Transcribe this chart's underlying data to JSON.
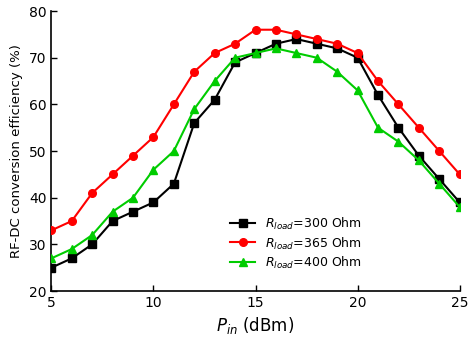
{
  "x": [
    5,
    6,
    7,
    8,
    9,
    10,
    11,
    12,
    13,
    14,
    15,
    16,
    17,
    18,
    19,
    20,
    21,
    22,
    23,
    24,
    25
  ],
  "y_300": [
    25,
    27,
    30,
    35,
    37,
    39,
    43,
    56,
    61,
    69,
    71,
    73,
    74,
    73,
    72,
    70,
    62,
    55,
    49,
    44,
    39
  ],
  "y_365": [
    33,
    35,
    41,
    45,
    49,
    53,
    60,
    67,
    71,
    73,
    76,
    76,
    75,
    74,
    73,
    71,
    65,
    60,
    55,
    50,
    45
  ],
  "y_400": [
    27,
    29,
    32,
    37,
    40,
    46,
    50,
    59,
    65,
    70,
    71,
    72,
    71,
    70,
    67,
    63,
    55,
    52,
    48,
    43,
    38
  ],
  "xlabel": "$P_{in}$ (dBm)",
  "ylabel": "RF-DC conversion efficiency (%)",
  "xlim": [
    5,
    25
  ],
  "ylim": [
    20,
    80
  ],
  "xticks": [
    5,
    10,
    15,
    20,
    25
  ],
  "yticks": [
    20,
    30,
    40,
    50,
    60,
    70,
    80
  ],
  "legend_300": "$R_{load}$=300 Ohm",
  "legend_365": "$R_{load}$=365 Ohm",
  "legend_400": "$R_{load}$=400 Ohm",
  "color_300": "#000000",
  "color_365": "#ff0000",
  "color_400": "#00cc00",
  "bg_color": "#ffffff"
}
